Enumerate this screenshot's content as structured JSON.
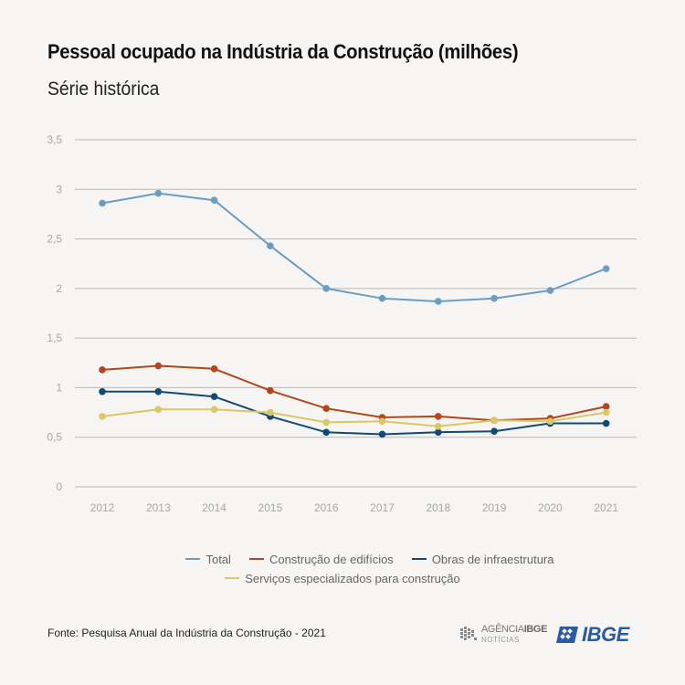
{
  "header": {
    "title": "Pessoal ocupado na Indústria da Construção (milhões)",
    "subtitle": "Série histórica"
  },
  "chart_data": {
    "type": "line",
    "x": [
      "2012",
      "2013",
      "2014",
      "2015",
      "2016",
      "2017",
      "2018",
      "2019",
      "2020",
      "2021"
    ],
    "ylim": [
      0,
      3.5
    ],
    "yticks": [
      "0",
      "0,5",
      "1",
      "1,5",
      "2",
      "2,5",
      "3",
      "3,5"
    ],
    "grid": true,
    "legend_position": "bottom",
    "series": [
      {
        "name": "Total",
        "color": "#6b9dc2",
        "values": [
          2.86,
          2.96,
          2.89,
          2.43,
          2.0,
          1.9,
          1.87,
          1.9,
          1.98,
          2.2
        ]
      },
      {
        "name": "Construção de edifícios",
        "color": "#b5451b",
        "values": [
          1.18,
          1.22,
          1.19,
          0.97,
          0.79,
          0.7,
          0.71,
          0.67,
          0.69,
          0.81
        ]
      },
      {
        "name": "Obras de infraestrutura",
        "color": "#0f4a78",
        "values": [
          0.96,
          0.96,
          0.91,
          0.71,
          0.55,
          0.53,
          0.55,
          0.56,
          0.64,
          0.64
        ]
      },
      {
        "name": "Serviços especializados para construção",
        "color": "#dcc765",
        "values": [
          0.71,
          0.78,
          0.78,
          0.75,
          0.65,
          0.66,
          0.61,
          0.67,
          0.66,
          0.75
        ]
      }
    ]
  },
  "footer": {
    "source": "Fonte: Pesquisa Anual da Indústria da Construção - 2021",
    "agencia_label": "AGÊNCIA",
    "agencia_brand": "IBGE",
    "agencia_sub": "NOTÍCIAS",
    "ibge_label": "IBGE"
  },
  "colors": {
    "background": "#f6f5f3",
    "grid": "#b9b9b9",
    "axis_text": "#a8a8a8",
    "ibge_blue": "#2a5aa6"
  },
  "icons": [
    "agencia-ibge-logo-icon",
    "ibge-logo-icon"
  ]
}
